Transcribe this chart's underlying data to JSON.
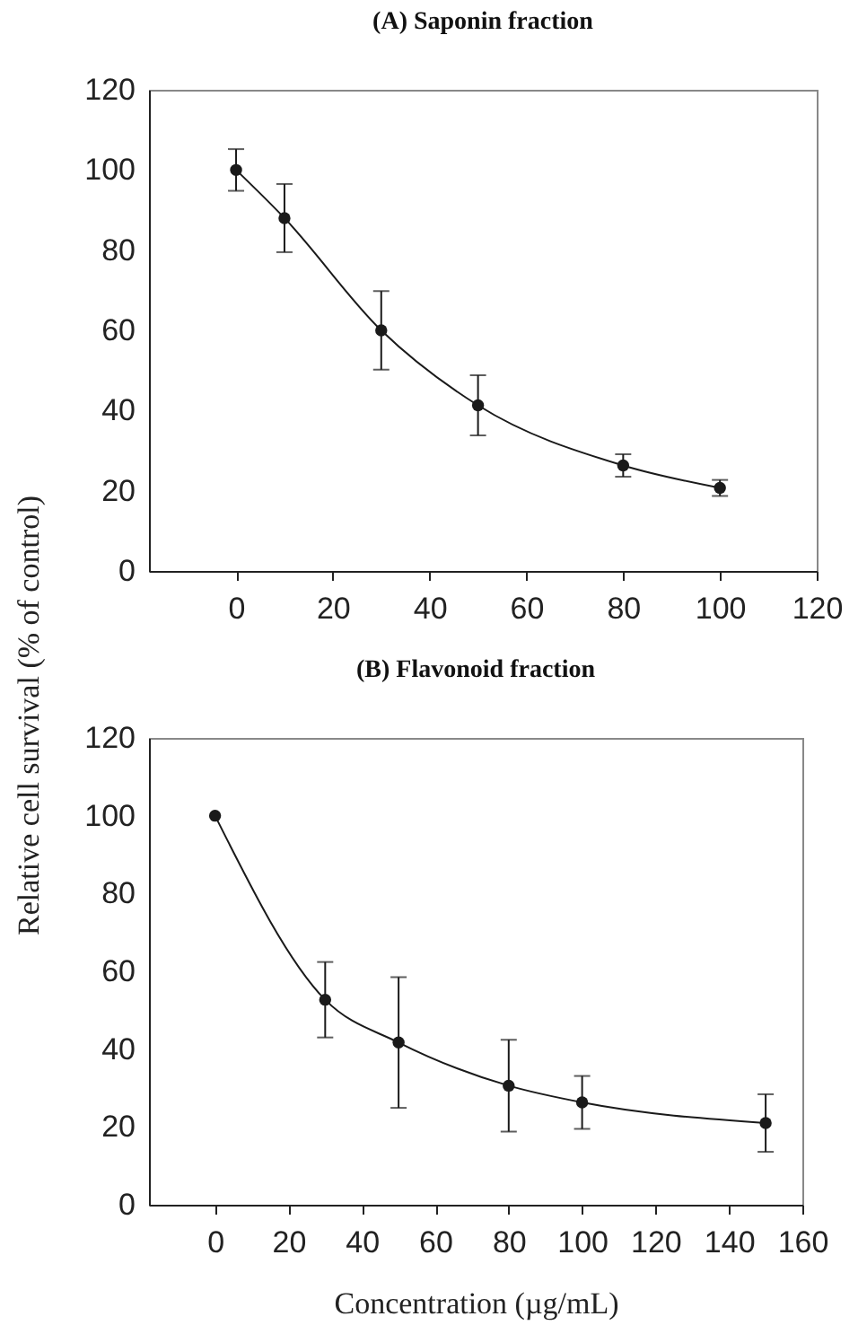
{
  "chart_data": [
    {
      "type": "line",
      "title": "(A) Saponin fraction",
      "x": [
        0,
        10,
        30,
        50,
        80,
        100
      ],
      "marker": "circle",
      "line_style": "solid",
      "series": [
        {
          "color": "#1a1a1a",
          "values": [
            100,
            88,
            60,
            41.3,
            26.3,
            20.7
          ],
          "errors": [
            5.2,
            8.5,
            9.8,
            7.5,
            2.8,
            2
          ]
        }
      ],
      "xlim": [
        -18,
        120
      ],
      "xticks": [
        0,
        20,
        40,
        60,
        80,
        100,
        120
      ],
      "ylim": [
        0,
        120
      ],
      "yticks": [
        0,
        20,
        40,
        60,
        80,
        100,
        120
      ],
      "ylabel": "Relative cell survival (% of control)"
    },
    {
      "type": "line",
      "title": "(B) Flavonoid fraction",
      "xlabel": "Concentration (µg/mL)",
      "x": [
        0,
        30,
        50,
        80,
        100,
        150
      ],
      "marker": "circle",
      "line_style": "solid",
      "series": [
        {
          "color": "#1a1a1a",
          "values": [
            100,
            52.7,
            41.7,
            30.6,
            26.3,
            21
          ],
          "errors": [
            null,
            9.7,
            16.8,
            11.8,
            6.8,
            7.4
          ]
        }
      ],
      "xlim": [
        -18,
        160
      ],
      "xticks": [
        0,
        20,
        40,
        60,
        80,
        100,
        120,
        140,
        160
      ],
      "ylim": [
        0,
        120
      ],
      "yticks": [
        0,
        20,
        40,
        60,
        80,
        100,
        120
      ]
    }
  ]
}
